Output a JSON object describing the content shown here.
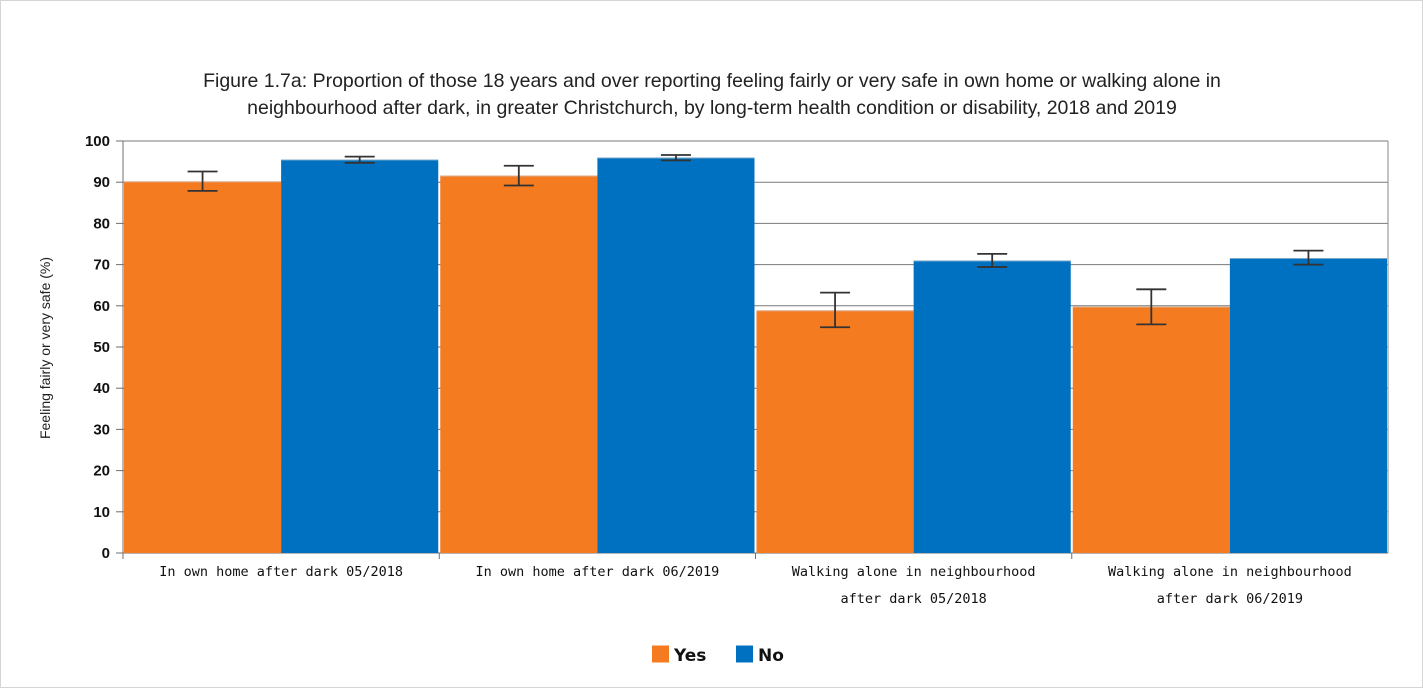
{
  "chart_data": {
    "type": "bar",
    "title_lines": [
      "Figure 1.7a: Proportion of those 18 years and over reporting feeling fairly or very safe in own home or walking alone in",
      "neighbourhood after dark, in greater Christchurch, by long-term health condition or disability, 2018 and 2019"
    ],
    "ylabel": "Feeling fairly or very safe (%)",
    "xlabel": "",
    "ylim": [
      0,
      100
    ],
    "yticks": [
      0,
      10,
      20,
      30,
      40,
      50,
      60,
      70,
      80,
      90,
      100
    ],
    "categories": [
      [
        "In own home after dark 05/2018"
      ],
      [
        "In own home after dark 06/2019"
      ],
      [
        "Walking alone in neighbourhood",
        "after dark 05/2018"
      ],
      [
        "Walking alone in neighbourhood",
        "after dark 06/2019"
      ]
    ],
    "series": [
      {
        "name": "Yes",
        "color": "#f47b20",
        "values": [
          90.2,
          91.6,
          58.9,
          59.8
        ],
        "error_low": [
          87.9,
          89.2,
          54.8,
          55.5
        ],
        "error_high": [
          92.6,
          94.0,
          63.2,
          64.0
        ]
      },
      {
        "name": "No",
        "color": "#0070c0",
        "values": [
          95.5,
          96.0,
          71.0,
          71.6
        ],
        "error_low": [
          94.7,
          95.3,
          69.4,
          70.0
        ],
        "error_high": [
          96.2,
          96.6,
          72.6,
          73.4
        ]
      }
    ],
    "grid": true,
    "legend_position": "bottom-center"
  }
}
